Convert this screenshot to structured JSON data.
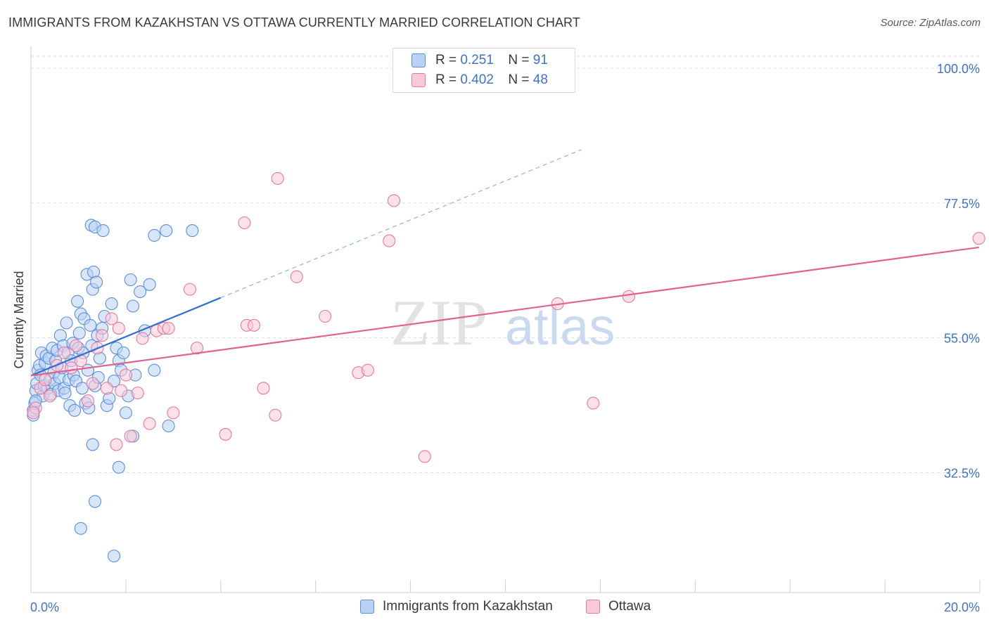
{
  "title": "IMMIGRANTS FROM KAZAKHSTAN VS OTTAWA CURRENTLY MARRIED CORRELATION CHART",
  "source": "Source: ZipAtlas.com",
  "watermark": {
    "zip": "ZIP",
    "atlas": "atlas"
  },
  "legend": {
    "r_label": "R =",
    "n_label": "N =",
    "series": [
      {
        "r": "0.251",
        "n": "91",
        "color": "#5b8fd9",
        "fill": "#b9d1f3"
      },
      {
        "r": "0.402",
        "n": "48",
        "color": "#e67a9c",
        "fill": "#f9c9d8"
      }
    ]
  },
  "bottom_legend": [
    "Immigrants from Kazakhstan",
    "Ottawa"
  ],
  "chart_data": {
    "type": "scatter",
    "title": "IMMIGRANTS FROM KAZAKHSTAN VS OTTAWA CURRENTLY MARRIED CORRELATION CHART",
    "xlabel": "",
    "ylabel": "Currently Married",
    "xlim": [
      0,
      20
    ],
    "ylim": [
      12.5,
      102
    ],
    "x_tick_labels": [
      "0.0%",
      "20.0%"
    ],
    "y_ticks": [
      32.5,
      55.0,
      77.5,
      100.0
    ],
    "y_tick_labels": [
      "32.5%",
      "55.0%",
      "77.5%",
      "100.0%"
    ],
    "grid": true,
    "series": [
      {
        "name": "Immigrants from Kazakhstan",
        "color": "#5b8fd9",
        "fill": "#b9d1f3",
        "r": 0.251,
        "n": 91,
        "trend": {
          "x0": 0,
          "y0": 48.7,
          "x1": 4.0,
          "y1": 61.7,
          "dashed_to_x": 11.6
        },
        "points": [
          [
            0.05,
            42.9
          ],
          [
            0.08,
            44.1
          ],
          [
            0.1,
            46.2
          ],
          [
            0.12,
            47.4
          ],
          [
            0.15,
            49.6
          ],
          [
            0.18,
            50.4
          ],
          [
            0.2,
            48.8
          ],
          [
            0.22,
            52.5
          ],
          [
            0.25,
            45.3
          ],
          [
            0.28,
            47.0
          ],
          [
            0.3,
            50.8
          ],
          [
            0.32,
            52.0
          ],
          [
            0.35,
            46.6
          ],
          [
            0.38,
            51.6
          ],
          [
            0.4,
            48.0
          ],
          [
            0.42,
            45.6
          ],
          [
            0.45,
            53.3
          ],
          [
            0.48,
            49.2
          ],
          [
            0.5,
            47.4
          ],
          [
            0.52,
            51.2
          ],
          [
            0.55,
            52.9
          ],
          [
            0.58,
            46.2
          ],
          [
            0.6,
            48.4
          ],
          [
            0.62,
            55.4
          ],
          [
            0.65,
            50.0
          ],
          [
            0.68,
            53.7
          ],
          [
            0.7,
            46.6
          ],
          [
            0.72,
            45.8
          ],
          [
            0.75,
            57.5
          ],
          [
            0.78,
            52.5
          ],
          [
            0.8,
            48.0
          ],
          [
            0.82,
            43.7
          ],
          [
            0.85,
            51.2
          ],
          [
            0.88,
            54.1
          ],
          [
            0.9,
            48.8
          ],
          [
            0.92,
            42.9
          ],
          [
            0.95,
            47.8
          ],
          [
            0.98,
            61.1
          ],
          [
            1.0,
            53.3
          ],
          [
            1.02,
            55.8
          ],
          [
            1.05,
            59.0
          ],
          [
            1.08,
            46.6
          ],
          [
            1.1,
            52.5
          ],
          [
            1.12,
            58.2
          ],
          [
            1.15,
            44.1
          ],
          [
            1.18,
            65.6
          ],
          [
            1.2,
            49.6
          ],
          [
            1.22,
            43.3
          ],
          [
            1.25,
            57.1
          ],
          [
            1.28,
            53.7
          ],
          [
            1.3,
            63.1
          ],
          [
            1.32,
            66.0
          ],
          [
            1.35,
            47.0
          ],
          [
            1.38,
            64.3
          ],
          [
            1.4,
            55.4
          ],
          [
            1.42,
            48.4
          ],
          [
            1.45,
            51.6
          ],
          [
            1.5,
            56.6
          ],
          [
            1.55,
            58.6
          ],
          [
            1.6,
            43.7
          ],
          [
            1.65,
            44.9
          ],
          [
            1.7,
            60.7
          ],
          [
            1.75,
            47.8
          ],
          [
            1.8,
            53.3
          ],
          [
            1.85,
            51.2
          ],
          [
            1.9,
            49.6
          ],
          [
            1.95,
            52.5
          ],
          [
            2.0,
            42.5
          ],
          [
            2.05,
            45.3
          ],
          [
            2.1,
            64.7
          ],
          [
            2.15,
            60.3
          ],
          [
            2.2,
            48.8
          ],
          [
            2.3,
            62.7
          ],
          [
            2.4,
            56.2
          ],
          [
            2.5,
            63.9
          ],
          [
            2.6,
            49.6
          ],
          [
            1.3,
            37.2
          ],
          [
            1.35,
            27.7
          ],
          [
            1.05,
            23.2
          ],
          [
            1.75,
            18.6
          ],
          [
            1.85,
            33.4
          ],
          [
            2.15,
            38.6
          ],
          [
            2.9,
            40.3
          ],
          [
            2.6,
            72.1
          ],
          [
            2.85,
            72.9
          ],
          [
            3.4,
            72.9
          ],
          [
            1.27,
            73.8
          ],
          [
            1.35,
            73.5
          ],
          [
            1.52,
            72.9
          ],
          [
            0.05,
            42.1
          ],
          [
            0.1,
            44.5
          ]
        ]
      },
      {
        "name": "Ottawa",
        "color": "#e67a9c",
        "fill": "#f9c9d8",
        "r": 0.402,
        "n": 48,
        "trend": {
          "x0": 0,
          "y0": 48.7,
          "x1": 19.98,
          "y1": 70.1
        },
        "points": [
          [
            0.1,
            43.3
          ],
          [
            0.2,
            46.6
          ],
          [
            0.3,
            48.0
          ],
          [
            0.4,
            45.3
          ],
          [
            0.55,
            50.4
          ],
          [
            0.7,
            52.5
          ],
          [
            0.85,
            50.0
          ],
          [
            0.95,
            53.7
          ],
          [
            1.05,
            51.2
          ],
          [
            1.2,
            44.5
          ],
          [
            1.3,
            47.4
          ],
          [
            1.4,
            53.3
          ],
          [
            1.5,
            55.4
          ],
          [
            1.6,
            46.6
          ],
          [
            1.7,
            58.2
          ],
          [
            1.8,
            37.2
          ],
          [
            1.85,
            56.6
          ],
          [
            1.9,
            46.2
          ],
          [
            2.0,
            48.8
          ],
          [
            2.1,
            38.6
          ],
          [
            2.25,
            45.8
          ],
          [
            2.35,
            54.9
          ],
          [
            2.5,
            40.7
          ],
          [
            2.65,
            56.2
          ],
          [
            2.8,
            56.6
          ],
          [
            2.9,
            56.6
          ],
          [
            3.0,
            42.5
          ],
          [
            3.35,
            63.1
          ],
          [
            3.5,
            53.3
          ],
          [
            4.1,
            38.9
          ],
          [
            4.55,
            57.1
          ],
          [
            4.7,
            57.1
          ],
          [
            4.9,
            46.6
          ],
          [
            5.15,
            42.1
          ],
          [
            5.6,
            65.2
          ],
          [
            6.2,
            58.6
          ],
          [
            6.9,
            49.2
          ],
          [
            7.1,
            49.6
          ],
          [
            7.55,
            71.2
          ],
          [
            7.65,
            77.9
          ],
          [
            8.3,
            35.2
          ],
          [
            11.1,
            60.7
          ],
          [
            11.85,
            44.1
          ],
          [
            12.6,
            61.9
          ],
          [
            19.98,
            71.6
          ],
          [
            4.5,
            74.2
          ],
          [
            5.2,
            81.6
          ],
          [
            0.05,
            42.5
          ]
        ]
      }
    ]
  }
}
